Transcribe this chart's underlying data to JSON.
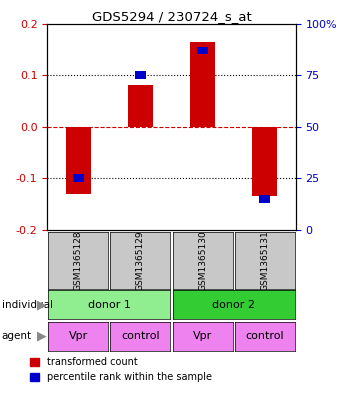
{
  "title": "GDS5294 / 230724_s_at",
  "samples": [
    "GSM1365128",
    "GSM1365129",
    "GSM1365130",
    "GSM1365131"
  ],
  "transformed_counts": [
    -0.13,
    0.08,
    0.165,
    -0.135
  ],
  "percentile_rank_pct": [
    25,
    75,
    87,
    15
  ],
  "ylim": [
    -0.2,
    0.2
  ],
  "yticks_left": [
    -0.2,
    -0.1,
    0,
    0.1,
    0.2
  ],
  "yticks_right": [
    0,
    25,
    50,
    75,
    100
  ],
  "donor_groups": [
    {
      "label": "donor 1",
      "cols": [
        0,
        1
      ],
      "color": "#90EE90"
    },
    {
      "label": "donor 2",
      "cols": [
        2,
        3
      ],
      "color": "#33CC33"
    }
  ],
  "agent_labels": [
    "Vpr",
    "control",
    "Vpr",
    "control"
  ],
  "agent_color": "#EE82EE",
  "bar_color": "#CC0000",
  "blue_color": "#0000CC",
  "zero_line_color": "#CC0000",
  "bg_color": "#FFFFFF",
  "plot_bg": "#FFFFFF",
  "left_tick_color": "#CC0000",
  "right_tick_color": "#0000CC",
  "legend_items": [
    "transformed count",
    "percentile rank within the sample"
  ],
  "bar_width": 0.4,
  "blue_marker_size": 0.015,
  "sample_box_color": "#C8C8C8"
}
